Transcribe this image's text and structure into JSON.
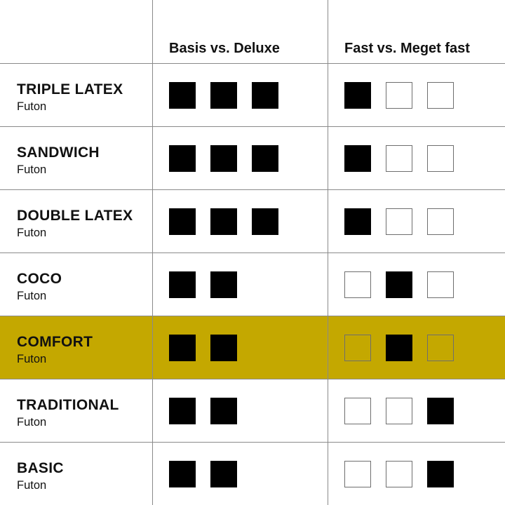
{
  "header": {
    "col1": "Basis vs. Deluxe",
    "col2": "Fast vs. Meget fast"
  },
  "highlight_color": "#c4a800",
  "rows": [
    {
      "name": "TRIPLE LATEX",
      "type": "Futon",
      "basis_deluxe": 3,
      "firmness": 1,
      "highlighted": false
    },
    {
      "name": "SANDWICH",
      "type": "Futon",
      "basis_deluxe": 3,
      "firmness": 1,
      "highlighted": false
    },
    {
      "name": "DOUBLE LATEX",
      "type": "Futon",
      "basis_deluxe": 3,
      "firmness": 1,
      "highlighted": false
    },
    {
      "name": "COCO",
      "type": "Futon",
      "basis_deluxe": 2,
      "firmness": 2,
      "highlighted": false
    },
    {
      "name": "COMFORT",
      "type": "Futon",
      "basis_deluxe": 2,
      "firmness": 2,
      "highlighted": true
    },
    {
      "name": "TRADITIONAL",
      "type": "Futon",
      "basis_deluxe": 2,
      "firmness": 3,
      "highlighted": false
    },
    {
      "name": "BASIC",
      "type": "Futon",
      "basis_deluxe": 2,
      "firmness": 3,
      "highlighted": false
    }
  ]
}
